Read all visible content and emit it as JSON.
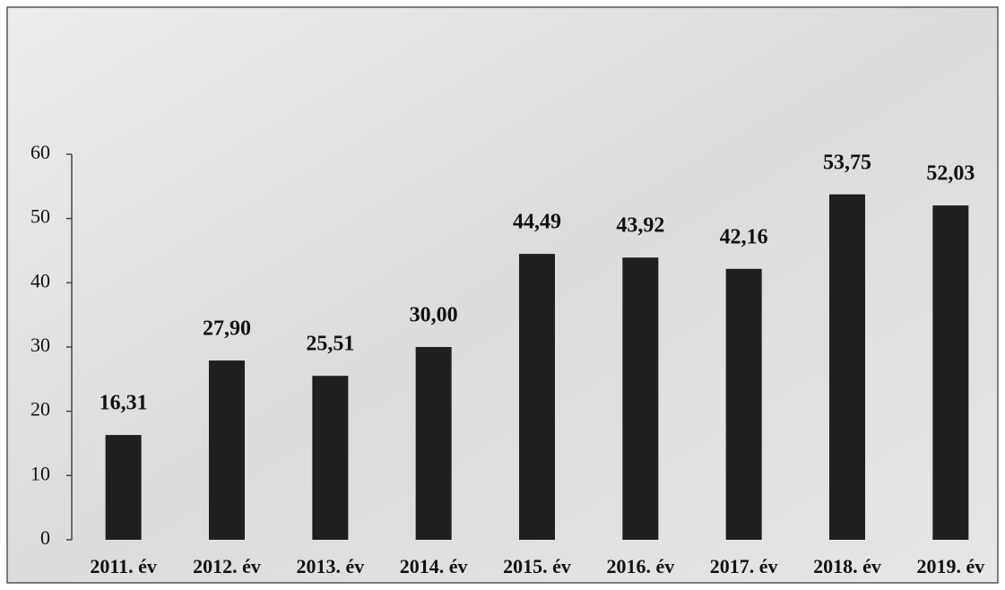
{
  "chart_data": {
    "type": "bar",
    "categories": [
      "2011. év",
      "2012. év",
      "2013. év",
      "2014. év",
      "2015. év",
      "2016. év",
      "2017. év",
      "2018. év",
      "2019. év"
    ],
    "values": [
      16.31,
      27.9,
      25.51,
      30.0,
      44.49,
      43.92,
      42.16,
      53.75,
      52.03
    ],
    "value_labels": [
      "16,31",
      "27,90",
      "25,51",
      "30,00",
      "44,49",
      "43,92",
      "42,16",
      "53,75",
      "52,03"
    ],
    "color": "#1f1f1f",
    "ylim": [
      0,
      60
    ],
    "yticks": [
      0,
      10,
      20,
      30,
      40,
      50,
      60
    ],
    "grid": false
  }
}
